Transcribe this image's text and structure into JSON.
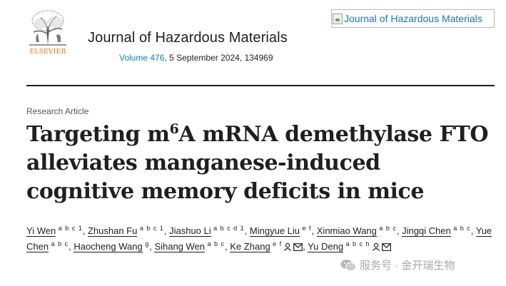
{
  "header": {
    "publisher_logo_text": "ELSEVIER",
    "journal_name": "Journal of Hazardous Materials",
    "citation": {
      "volume_link": "Volume 476",
      "rest": ", 5 September 2024, 134969"
    },
    "cover_image_alt": "Journal of Hazardous Materials"
  },
  "article": {
    "type": "Research Article",
    "title_part1": "Targeting m",
    "title_sup": "6",
    "title_part2": "A mRNA demethylase FTO alleviates manganese-induced cognitive memory deficits in mice"
  },
  "authors": [
    {
      "name": "Yi Wen",
      "aff": "a b c 1",
      "person": false,
      "mail": false
    },
    {
      "name": "Zhushan Fu",
      "aff": "a b c 1",
      "person": false,
      "mail": false
    },
    {
      "name": "Jiashuo Li",
      "aff": "a b c d 1",
      "person": false,
      "mail": false
    },
    {
      "name": "Mingyue Liu",
      "aff": "e f",
      "person": false,
      "mail": false
    },
    {
      "name": "Xinmiao Wang",
      "aff": "a b c",
      "person": false,
      "mail": false
    },
    {
      "name": "Jingqi Chen",
      "aff": "a b c",
      "person": false,
      "mail": false
    },
    {
      "name": "Yue Chen",
      "aff": "a b c",
      "person": false,
      "mail": false
    },
    {
      "name": "Haocheng Wang",
      "aff": "g",
      "person": false,
      "mail": false
    },
    {
      "name": "Sihang Wen",
      "aff": "a b c",
      "person": false,
      "mail": false
    },
    {
      "name": "Ke Zhang",
      "aff": "e f",
      "person": true,
      "mail": true
    },
    {
      "name": "Yu Deng",
      "aff": "a b c h",
      "person": true,
      "mail": true
    }
  ],
  "watermark": {
    "text": "服务号 · 金开瑞生物"
  },
  "colors": {
    "link": "#0c7dbb",
    "text": "#1f1f1f",
    "elsevier_orange": "#e9711c"
  }
}
